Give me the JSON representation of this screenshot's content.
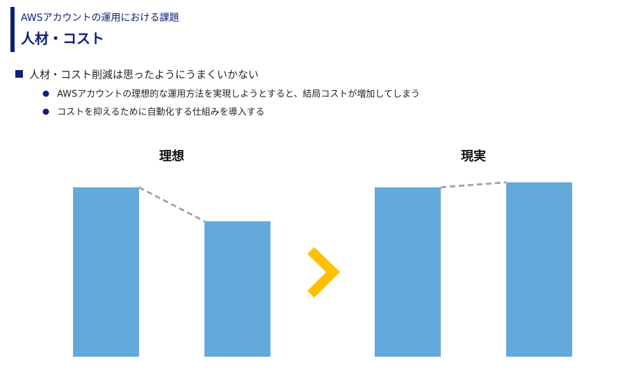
{
  "header": {
    "subtitle": "AWSアカウントの運用における課題",
    "title": "人材・コスト"
  },
  "bullets": {
    "main": "人材・コスト削減は思ったようにうまくいかない",
    "sub": [
      "AWSアカウントの理想的な運用方法を実現しようとすると、結局コストが増加してしまう",
      "コストを抑えるために自動化する仕組みを導入する"
    ]
  },
  "chart_data": [
    {
      "type": "bar",
      "title": "理想",
      "categories": [
        null,
        null
      ],
      "values": [
        100,
        80
      ],
      "color": "#64A9DB",
      "connector_color": "#A6A6A6"
    },
    {
      "type": "bar",
      "title": "現実",
      "categories": [
        null,
        null
      ],
      "values": [
        100,
        103
      ],
      "color": "#64A9DB",
      "connector_color": "#A6A6A6"
    }
  ]
}
